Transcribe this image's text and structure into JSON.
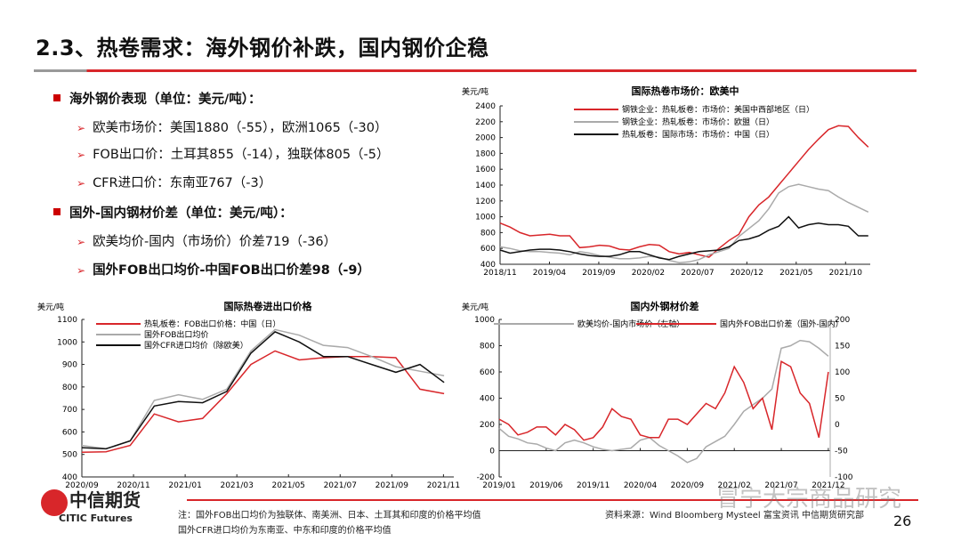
{
  "title": "2.3、热卷需求：海外钢价补跌，国内钢价企稳",
  "bullets": [
    {
      "level": 1,
      "text": "海外钢价表现（单位：美元/吨）："
    },
    {
      "level": 2,
      "text": "欧美市场价：美国1880（-55），欧洲1065（-30）"
    },
    {
      "level": 2,
      "text": "FOB出口价：土耳其855（-14），独联体805（-5）"
    },
    {
      "level": 2,
      "text": "CFR进口价：东南亚767（-3）"
    },
    {
      "level": 1,
      "text": "国外-国内钢材价差（单位：美元/吨）："
    },
    {
      "level": 2,
      "text": "欧美均价-国内（市场价）价差719（-36）"
    },
    {
      "level": 2,
      "text": "国外FOB出口均价-中国FOB出口价差98（-9）",
      "bold": true
    }
  ],
  "chart_data": [
    {
      "type": "line",
      "title": "国际热卷市场价：欧美中",
      "ylabel": "美元/吨",
      "ylim": [
        400,
        2400
      ],
      "yticks": [
        400,
        600,
        800,
        1000,
        1200,
        1400,
        1600,
        1800,
        2000,
        2200,
        2400
      ],
      "xticks": [
        "2018/11",
        "2019/04",
        "2019/09",
        "2020/02",
        "2020/07",
        "2020/12",
        "2021/05",
        "2021/10"
      ],
      "xstart": "2018/11",
      "legend": "top",
      "series": [
        {
          "name": "钢铁企业：热轧板卷：市场价：美国中西部地区（日）",
          "color": "#d8262a",
          "values": [
            920,
            870,
            800,
            760,
            770,
            780,
            760,
            760,
            610,
            620,
            640,
            630,
            590,
            580,
            620,
            650,
            640,
            560,
            530,
            550,
            520,
            490,
            600,
            700,
            780,
            1000,
            1150,
            1250,
            1400,
            1550,
            1700,
            1850,
            1980,
            2100,
            2150,
            2140,
            2000,
            1880
          ]
        },
        {
          "name": "钢铁企业：热轧板卷：市场价：欧盟（日）",
          "color": "#aaaaaa",
          "values": [
            620,
            600,
            570,
            560,
            560,
            550,
            540,
            520,
            560,
            540,
            510,
            490,
            470,
            470,
            480,
            500,
            490,
            450,
            420,
            430,
            460,
            520,
            560,
            600,
            750,
            850,
            950,
            1100,
            1300,
            1380,
            1410,
            1380,
            1350,
            1330,
            1250,
            1180,
            1120,
            1060
          ]
        },
        {
          "name": "热轧板卷：国际市场：市场价：中国（日）",
          "color": "#111111",
          "values": [
            580,
            540,
            560,
            580,
            590,
            590,
            580,
            560,
            530,
            510,
            500,
            500,
            520,
            560,
            560,
            520,
            480,
            460,
            500,
            530,
            560,
            570,
            580,
            620,
            700,
            720,
            760,
            830,
            880,
            1000,
            860,
            900,
            920,
            900,
            900,
            880,
            760,
            760
          ]
        }
      ]
    },
    {
      "type": "line",
      "title": "国际热卷进出口价格",
      "ylabel": "美元/吨",
      "ylim": [
        400,
        1100
      ],
      "yticks": [
        400,
        500,
        600,
        700,
        800,
        900,
        1000,
        1100
      ],
      "xticks": [
        "2020/09",
        "2020/11",
        "2021/01",
        "2021/03",
        "2021/05",
        "2021/07",
        "2021/09",
        "2021/11"
      ],
      "xstart": "2020/09",
      "legend": "top-left",
      "series": [
        {
          "name": "热轧板卷：FOB出口价格：中国（日）",
          "color": "#d8262a",
          "values": [
            510,
            512,
            540,
            680,
            645,
            660,
            770,
            900,
            960,
            920,
            930,
            935,
            935,
            930,
            790,
            770
          ]
        },
        {
          "name": "国外FOB出口均价",
          "color": "#aaaaaa",
          "values": [
            540,
            525,
            560,
            740,
            765,
            745,
            790,
            960,
            1055,
            1030,
            985,
            975,
            935,
            890,
            870,
            850
          ]
        },
        {
          "name": "国外CFR进口均价（除欧美）",
          "color": "#111111",
          "values": [
            530,
            525,
            560,
            715,
            735,
            730,
            780,
            950,
            1045,
            1000,
            935,
            935,
            900,
            865,
            900,
            820
          ]
        }
      ]
    },
    {
      "type": "line",
      "title": "国内外钢材价差",
      "ylabel": "美元/吨",
      "ylim": [
        -200,
        1000
      ],
      "yticks": [
        -200,
        0,
        200,
        400,
        600,
        800,
        1000
      ],
      "y2lim": [
        -100,
        200
      ],
      "y2ticks": [
        -100,
        -50,
        0,
        50,
        100,
        150,
        200
      ],
      "xticks": [
        "2019/01",
        "2019/06",
        "2019/11",
        "2020/04",
        "2020/09",
        "2021/02",
        "2021/07",
        "2021/12"
      ],
      "xstart": "2019/01",
      "legend": "top",
      "series": [
        {
          "name": "欧美均价-国内市场价（左轴）",
          "color": "#aaaaaa",
          "axis": "left",
          "values": [
            170,
            110,
            90,
            60,
            50,
            20,
            0,
            60,
            80,
            60,
            30,
            10,
            0,
            10,
            20,
            80,
            100,
            40,
            0,
            -40,
            -90,
            -60,
            30,
            70,
            110,
            200,
            300,
            350,
            400,
            470,
            780,
            800,
            840,
            830,
            780,
            720
          ]
        },
        {
          "name": "国内外FOB出口价差（国外-国内）",
          "color": "#d8262a",
          "axis": "right",
          "values": [
            10,
            0,
            -20,
            -15,
            -5,
            -5,
            -20,
            0,
            -10,
            -30,
            -25,
            -5,
            30,
            15,
            10,
            -20,
            -25,
            -25,
            10,
            10,
            0,
            20,
            40,
            30,
            60,
            110,
            80,
            30,
            50,
            -10,
            120,
            110,
            60,
            40,
            -25,
            100
          ]
        }
      ]
    }
  ],
  "footer": {
    "note1": "注：国外FOB出口均价为独联体、南美洲、日本、土耳其和印度的价格平均值",
    "note2": "国外CFR进口均价为东南亚、中东和印度的价格平均值",
    "source": "资料来源：Wind Bloomberg Mysteel 富宝资讯 中信期货研究部",
    "page": "26"
  },
  "logo": {
    "cn": "中信期货",
    "en": "CITIC Futures"
  },
  "watermark": "冒宁大宗商品研究"
}
